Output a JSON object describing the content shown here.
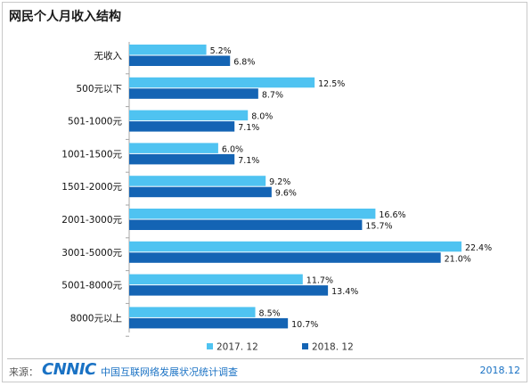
{
  "title": "网民个人月收入结构",
  "footer": {
    "source_prefix": "来源：",
    "logo_text": "CNNIC",
    "source_org": "中国互联网络发展状况统计调查",
    "date": "2018.12"
  },
  "colors": {
    "series_2017": "#4fc3f1",
    "series_2018": "#1464b4",
    "axis": "#a6a6a6"
  },
  "chart_data": {
    "type": "bar",
    "orientation": "horizontal",
    "categories": [
      "无收入",
      "500元以下",
      "501-1000元",
      "1001-1500元",
      "1501-2000元",
      "2001-3000元",
      "3001-5000元",
      "5001-8000元",
      "8000元以上"
    ],
    "series": [
      {
        "name": "2017. 12",
        "values": [
          5.2,
          12.5,
          8.0,
          6.0,
          9.2,
          16.6,
          22.4,
          11.7,
          8.5
        ],
        "labels": [
          "5.2%",
          "12.5%",
          "8.0%",
          "6.0%",
          "9.2%",
          "16.6%",
          "22.4%",
          "11.7%",
          "8.5%"
        ]
      },
      {
        "name": "2018. 12",
        "values": [
          6.8,
          8.7,
          7.1,
          7.1,
          9.6,
          15.7,
          21.0,
          13.4,
          10.7
        ],
        "labels": [
          "6.8%",
          "8.7%",
          "7.1%",
          "7.1%",
          "9.6%",
          "15.7%",
          "21.0%",
          "13.4%",
          "10.7%"
        ]
      }
    ],
    "xlim": [
      0,
      24
    ],
    "legend_position": "bottom",
    "grid": false
  }
}
